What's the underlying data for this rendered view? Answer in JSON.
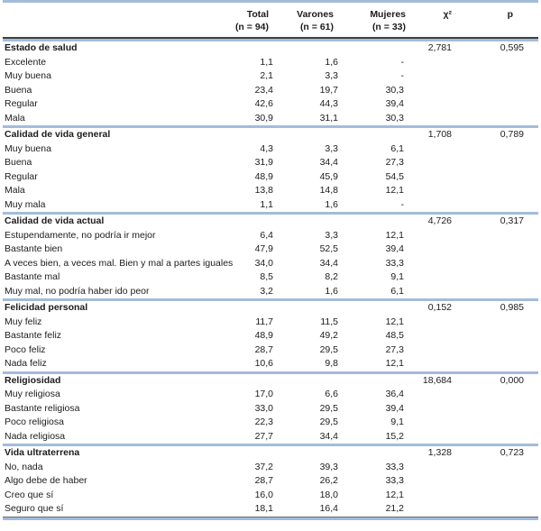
{
  "colors": {
    "accent_blue": "#a2bcda",
    "dark_rule": "#404040",
    "text": "#1c1c1c"
  },
  "table": {
    "columns": {
      "total": {
        "label": "Total",
        "sublabel": "(n = 94)"
      },
      "varones": {
        "label": "Varones",
        "sublabel": "(n = 61)"
      },
      "mujeres": {
        "label": "Mujeres",
        "sublabel": "(n = 33)"
      },
      "chi2": {
        "label": "χ²"
      },
      "p": {
        "label": "p"
      }
    },
    "sections": [
      {
        "name": "Estado de salud",
        "chi2": "2,781",
        "p": "0,595",
        "rows": [
          {
            "label": "Excelente",
            "total": "1,1",
            "varones": "1,6",
            "mujeres": "-"
          },
          {
            "label": "Muy buena",
            "total": "2,1",
            "varones": "3,3",
            "mujeres": "-"
          },
          {
            "label": "Buena",
            "total": "23,4",
            "varones": "19,7",
            "mujeres": "30,3"
          },
          {
            "label": "Regular",
            "total": "42,6",
            "varones": "44,3",
            "mujeres": "39,4"
          },
          {
            "label": "Mala",
            "total": "30,9",
            "varones": "31,1",
            "mujeres": "30,3"
          }
        ]
      },
      {
        "name": "Calidad de vida general",
        "chi2": "1,708",
        "p": "0,789",
        "rows": [
          {
            "label": "Muy buena",
            "total": "4,3",
            "varones": "3,3",
            "mujeres": "6,1"
          },
          {
            "label": "Buena",
            "total": "31,9",
            "varones": "34,4",
            "mujeres": "27,3"
          },
          {
            "label": "Regular",
            "total": "48,9",
            "varones": "45,9",
            "mujeres": "54,5"
          },
          {
            "label": "Mala",
            "total": "13,8",
            "varones": "14,8",
            "mujeres": "12,1"
          },
          {
            "label": "Muy mala",
            "total": "1,1",
            "varones": "1,6",
            "mujeres": "-"
          }
        ]
      },
      {
        "name": "Calidad de vida actual",
        "chi2": "4,726",
        "p": "0,317",
        "rows": [
          {
            "label": "Estupendamente, no podría ir mejor",
            "total": "6,4",
            "varones": "3,3",
            "mujeres": "12,1"
          },
          {
            "label": "Bastante bien",
            "total": "47,9",
            "varones": "52,5",
            "mujeres": "39,4"
          },
          {
            "label": "A veces bien, a veces mal. Bien y mal a partes iguales",
            "total": "34,0",
            "varones": "34,4",
            "mujeres": "33,3"
          },
          {
            "label": "Bastante mal",
            "total": "8,5",
            "varones": "8,2",
            "mujeres": "9,1"
          },
          {
            "label": "Muy mal, no podría haber ido peor",
            "total": "3,2",
            "varones": "1,6",
            "mujeres": "6,1"
          }
        ]
      },
      {
        "name": "Felicidad personal",
        "chi2": "0,152",
        "p": "0,985",
        "rows": [
          {
            "label": "Muy feliz",
            "total": "11,7",
            "varones": "11,5",
            "mujeres": "12,1"
          },
          {
            "label": "Bastante feliz",
            "total": "48,9",
            "varones": "49,2",
            "mujeres": "48,5"
          },
          {
            "label": "Poco feliz",
            "total": "28,7",
            "varones": "29,5",
            "mujeres": "27,3"
          },
          {
            "label": "Nada feliz",
            "total": "10,6",
            "varones": "9,8",
            "mujeres": "12,1"
          }
        ]
      },
      {
        "name": "Religiosidad",
        "chi2": "18,684",
        "p": "0,000",
        "rows": [
          {
            "label": "Muy religiosa",
            "total": "17,0",
            "varones": "6,6",
            "mujeres": "36,4"
          },
          {
            "label": "Bastante religiosa",
            "total": "33,0",
            "varones": "29,5",
            "mujeres": "39,4"
          },
          {
            "label": "Poco religiosa",
            "total": "22,3",
            "varones": "29,5",
            "mujeres": "9,1"
          },
          {
            "label": "Nada religiosa",
            "total": "27,7",
            "varones": "34,4",
            "mujeres": "15,2"
          }
        ]
      },
      {
        "name": "Vida ultraterrena",
        "chi2": "1,328",
        "p": "0,723",
        "rows": [
          {
            "label": "No, nada",
            "total": "37,2",
            "varones": "39,3",
            "mujeres": "33,3"
          },
          {
            "label": "Algo debe de haber",
            "total": "28,7",
            "varones": "26,2",
            "mujeres": "33,3"
          },
          {
            "label": "Creo que sí",
            "total": "16,0",
            "varones": "18,0",
            "mujeres": "12,1"
          },
          {
            "label": "Seguro que sí",
            "total": "18,1",
            "varones": "16,4",
            "mujeres": "21,2"
          }
        ]
      }
    ]
  }
}
